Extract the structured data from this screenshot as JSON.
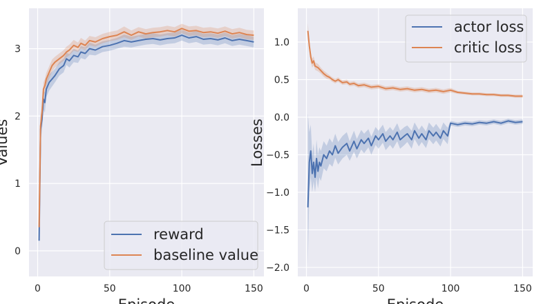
{
  "chart_data": [
    {
      "type": "line",
      "title": "",
      "xlabel": "Episode",
      "ylabel": "Values",
      "xlim": [
        -6,
        157
      ],
      "ylim": [
        -0.38,
        3.6
      ],
      "xticks": [
        0,
        50,
        100,
        150
      ],
      "xtick_labels": [
        "0",
        "50",
        "100",
        "150"
      ],
      "yticks": [
        0,
        1,
        2,
        3
      ],
      "ytick_labels": [
        "0",
        "1",
        "2",
        "3"
      ],
      "grid": true,
      "legend_position": "lower-right",
      "series": [
        {
          "name": "reward",
          "color": "#4c72b0",
          "x": [
            1,
            2,
            3,
            4,
            5,
            6,
            8,
            10,
            12,
            15,
            18,
            20,
            22,
            25,
            28,
            30,
            33,
            36,
            40,
            45,
            50,
            55,
            60,
            65,
            70,
            75,
            80,
            85,
            90,
            95,
            100,
            105,
            110,
            115,
            120,
            125,
            130,
            135,
            140,
            145,
            150
          ],
          "values": [
            0.15,
            1.8,
            1.95,
            2.25,
            2.2,
            2.4,
            2.5,
            2.55,
            2.6,
            2.7,
            2.75,
            2.85,
            2.82,
            2.9,
            2.88,
            2.95,
            2.93,
            3.0,
            2.98,
            3.03,
            3.05,
            3.08,
            3.12,
            3.1,
            3.12,
            3.14,
            3.15,
            3.13,
            3.15,
            3.16,
            3.2,
            3.16,
            3.18,
            3.14,
            3.15,
            3.13,
            3.16,
            3.12,
            3.14,
            3.12,
            3.1
          ],
          "ci_low": [
            -0.2,
            1.6,
            1.8,
            2.1,
            2.05,
            2.28,
            2.38,
            2.44,
            2.5,
            2.6,
            2.65,
            2.76,
            2.72,
            2.8,
            2.79,
            2.86,
            2.84,
            2.91,
            2.9,
            2.95,
            2.97,
            3.0,
            3.03,
            3.02,
            3.04,
            3.06,
            3.07,
            3.05,
            3.07,
            3.08,
            3.12,
            3.08,
            3.1,
            3.06,
            3.07,
            3.05,
            3.08,
            3.04,
            3.06,
            3.04,
            3.02
          ],
          "ci_high": [
            0.45,
            2.0,
            2.1,
            2.38,
            2.35,
            2.52,
            2.62,
            2.66,
            2.7,
            2.8,
            2.85,
            2.94,
            2.92,
            3.0,
            2.97,
            3.04,
            3.02,
            3.09,
            3.06,
            3.11,
            3.13,
            3.16,
            3.21,
            3.18,
            3.2,
            3.22,
            3.23,
            3.21,
            3.23,
            3.24,
            3.28,
            3.24,
            3.26,
            3.22,
            3.23,
            3.21,
            3.24,
            3.2,
            3.22,
            3.2,
            3.18
          ]
        },
        {
          "name": "baseline value",
          "color": "#dd8452",
          "x": [
            1,
            2,
            3,
            4,
            5,
            6,
            8,
            10,
            12,
            15,
            18,
            20,
            22,
            25,
            28,
            30,
            33,
            36,
            40,
            45,
            50,
            55,
            60,
            65,
            70,
            75,
            80,
            85,
            90,
            95,
            100,
            105,
            110,
            115,
            120,
            125,
            130,
            135,
            140,
            145,
            150
          ],
          "values": [
            0.35,
            1.85,
            2.05,
            2.4,
            2.45,
            2.55,
            2.65,
            2.75,
            2.8,
            2.85,
            2.9,
            2.95,
            2.98,
            3.05,
            3.02,
            3.08,
            3.05,
            3.12,
            3.1,
            3.15,
            3.18,
            3.2,
            3.25,
            3.2,
            3.25,
            3.22,
            3.24,
            3.25,
            3.27,
            3.25,
            3.3,
            3.26,
            3.27,
            3.24,
            3.25,
            3.23,
            3.26,
            3.22,
            3.24,
            3.21,
            3.2
          ],
          "ci_low": [
            0.2,
            1.7,
            1.92,
            2.3,
            2.35,
            2.46,
            2.56,
            2.66,
            2.72,
            2.77,
            2.82,
            2.87,
            2.9,
            2.97,
            2.95,
            3.0,
            2.98,
            3.05,
            3.03,
            3.08,
            3.11,
            3.13,
            3.17,
            3.13,
            3.18,
            3.15,
            3.17,
            3.18,
            3.2,
            3.18,
            3.23,
            3.19,
            3.2,
            3.17,
            3.18,
            3.16,
            3.19,
            3.15,
            3.17,
            3.14,
            3.13
          ],
          "ci_high": [
            0.5,
            2.0,
            2.18,
            2.5,
            2.55,
            2.64,
            2.74,
            2.84,
            2.88,
            2.93,
            2.98,
            3.03,
            3.06,
            3.13,
            3.09,
            3.16,
            3.12,
            3.19,
            3.17,
            3.22,
            3.25,
            3.27,
            3.33,
            3.27,
            3.32,
            3.29,
            3.31,
            3.32,
            3.34,
            3.32,
            3.37,
            3.33,
            3.34,
            3.31,
            3.32,
            3.3,
            3.33,
            3.29,
            3.31,
            3.28,
            3.27
          ]
        }
      ]
    },
    {
      "type": "line",
      "title": "",
      "xlabel": "Episode",
      "ylabel": "Losses",
      "xlim": [
        -6,
        157
      ],
      "ylim": [
        -2.12,
        1.45
      ],
      "xticks": [
        0,
        50,
        100,
        150
      ],
      "xtick_labels": [
        "0",
        "50",
        "100",
        "150"
      ],
      "yticks": [
        -2.0,
        -1.5,
        -1.0,
        -0.5,
        0.0,
        0.5,
        1.0
      ],
      "ytick_labels": [
        "−2.0",
        "−1.5",
        "−1.0",
        "−0.5",
        "0.0",
        "0.5",
        "1.0"
      ],
      "grid": true,
      "legend_position": "upper-right",
      "series": [
        {
          "name": "actor loss",
          "color": "#4c72b0",
          "x": [
            1,
            2,
            3,
            4,
            5,
            6,
            7,
            8,
            9,
            10,
            12,
            14,
            16,
            18,
            20,
            22,
            25,
            28,
            30,
            33,
            35,
            38,
            40,
            43,
            45,
            48,
            50,
            53,
            55,
            58,
            60,
            63,
            65,
            68,
            70,
            73,
            75,
            78,
            80,
            83,
            85,
            88,
            90,
            93,
            95,
            98,
            100,
            105,
            110,
            115,
            120,
            125,
            130,
            135,
            140,
            145,
            150
          ],
          "values": [
            -1.2,
            -0.6,
            -0.45,
            -0.75,
            -0.6,
            -0.8,
            -0.55,
            -0.72,
            -0.6,
            -0.65,
            -0.5,
            -0.55,
            -0.45,
            -0.5,
            -0.38,
            -0.48,
            -0.4,
            -0.35,
            -0.45,
            -0.32,
            -0.42,
            -0.3,
            -0.35,
            -0.28,
            -0.38,
            -0.25,
            -0.3,
            -0.22,
            -0.32,
            -0.25,
            -0.3,
            -0.2,
            -0.3,
            -0.25,
            -0.22,
            -0.3,
            -0.18,
            -0.28,
            -0.22,
            -0.3,
            -0.18,
            -0.25,
            -0.2,
            -0.28,
            -0.18,
            -0.25,
            -0.08,
            -0.1,
            -0.08,
            -0.09,
            -0.07,
            -0.08,
            -0.06,
            -0.08,
            -0.05,
            -0.07,
            -0.06
          ],
          "ci_low": [
            -1.95,
            -1.0,
            -0.8,
            -1.0,
            -0.85,
            -1.0,
            -0.8,
            -0.95,
            -0.8,
            -0.85,
            -0.68,
            -0.72,
            -0.62,
            -0.66,
            -0.54,
            -0.63,
            -0.55,
            -0.5,
            -0.58,
            -0.46,
            -0.55,
            -0.43,
            -0.48,
            -0.4,
            -0.5,
            -0.37,
            -0.42,
            -0.34,
            -0.44,
            -0.37,
            -0.42,
            -0.32,
            -0.42,
            -0.37,
            -0.33,
            -0.42,
            -0.29,
            -0.39,
            -0.33,
            -0.41,
            -0.29,
            -0.36,
            -0.31,
            -0.39,
            -0.29,
            -0.36,
            -0.11,
            -0.13,
            -0.11,
            -0.12,
            -0.1,
            -0.11,
            -0.09,
            -0.11,
            -0.08,
            -0.1,
            -0.09
          ],
          "ci_high": [
            0.05,
            -0.2,
            -0.1,
            -0.5,
            -0.35,
            -0.6,
            -0.3,
            -0.5,
            -0.4,
            -0.45,
            -0.32,
            -0.38,
            -0.28,
            -0.34,
            -0.22,
            -0.33,
            -0.25,
            -0.2,
            -0.32,
            -0.18,
            -0.29,
            -0.17,
            -0.22,
            -0.16,
            -0.26,
            -0.13,
            -0.18,
            -0.1,
            -0.2,
            -0.13,
            -0.18,
            -0.08,
            -0.18,
            -0.13,
            -0.11,
            -0.18,
            -0.07,
            -0.17,
            -0.11,
            -0.19,
            -0.07,
            -0.14,
            -0.09,
            -0.17,
            -0.07,
            -0.14,
            -0.05,
            -0.07,
            -0.05,
            -0.06,
            -0.04,
            -0.05,
            -0.03,
            -0.05,
            -0.02,
            -0.04,
            -0.03
          ]
        },
        {
          "name": "critic loss",
          "color": "#dd8452",
          "x": [
            1,
            2,
            3,
            4,
            5,
            6,
            8,
            10,
            12,
            14,
            16,
            18,
            20,
            22,
            25,
            28,
            30,
            33,
            36,
            40,
            45,
            50,
            55,
            60,
            65,
            70,
            75,
            80,
            85,
            90,
            95,
            100,
            105,
            110,
            115,
            120,
            125,
            130,
            135,
            140,
            145,
            150
          ],
          "values": [
            1.15,
            0.95,
            0.8,
            0.72,
            0.75,
            0.68,
            0.66,
            0.62,
            0.58,
            0.55,
            0.53,
            0.5,
            0.48,
            0.5,
            0.46,
            0.47,
            0.44,
            0.45,
            0.42,
            0.43,
            0.4,
            0.41,
            0.38,
            0.39,
            0.37,
            0.38,
            0.36,
            0.37,
            0.35,
            0.36,
            0.34,
            0.36,
            0.33,
            0.32,
            0.31,
            0.31,
            0.3,
            0.3,
            0.29,
            0.29,
            0.28,
            0.28
          ],
          "ci_low": [
            1.05,
            0.88,
            0.73,
            0.66,
            0.69,
            0.63,
            0.61,
            0.58,
            0.54,
            0.51,
            0.5,
            0.47,
            0.45,
            0.47,
            0.43,
            0.44,
            0.41,
            0.42,
            0.39,
            0.4,
            0.37,
            0.38,
            0.35,
            0.36,
            0.34,
            0.35,
            0.33,
            0.34,
            0.32,
            0.33,
            0.31,
            0.33,
            0.31,
            0.3,
            0.29,
            0.29,
            0.28,
            0.28,
            0.27,
            0.27,
            0.26,
            0.26
          ],
          "ci_high": [
            1.25,
            1.02,
            0.87,
            0.78,
            0.81,
            0.73,
            0.71,
            0.66,
            0.62,
            0.59,
            0.56,
            0.53,
            0.51,
            0.53,
            0.49,
            0.5,
            0.47,
            0.48,
            0.45,
            0.46,
            0.43,
            0.44,
            0.41,
            0.42,
            0.4,
            0.41,
            0.39,
            0.4,
            0.38,
            0.39,
            0.37,
            0.39,
            0.35,
            0.34,
            0.33,
            0.33,
            0.32,
            0.32,
            0.31,
            0.31,
            0.3,
            0.3
          ]
        }
      ]
    }
  ]
}
